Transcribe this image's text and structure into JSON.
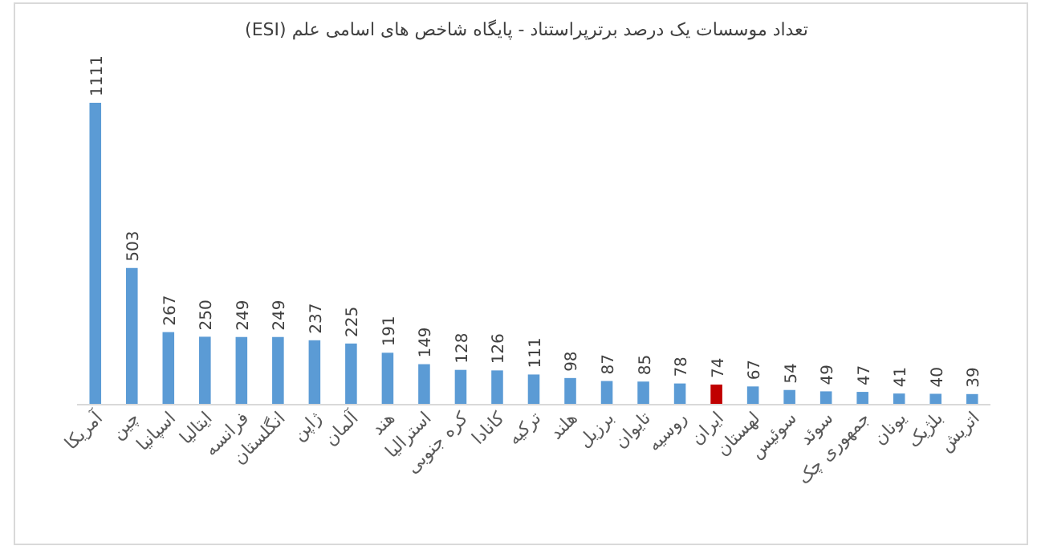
{
  "chart_data": {
    "type": "bar",
    "title": "تعداد موسسات یک درصد برترپراستناد - پایگاه شاخص های اسامی علم (ESI)",
    "categories": [
      "آمریکا",
      "چین",
      "اسپانیا",
      "ایتالیا",
      "فرانسه",
      "انگلستان",
      "ژاپن",
      "آلمان",
      "هند",
      "استرالیا",
      "کره جنوبی",
      "کانادا",
      "ترکیه",
      "هلند",
      "برزیل",
      "تایوان",
      "روسیه",
      "ایران",
      "لهستان",
      "سوئیس",
      "سوئد",
      "جمهوری چک",
      "یونان",
      "بلژیک",
      "اتریش"
    ],
    "values": [
      1111,
      503,
      267,
      250,
      249,
      249,
      237,
      225,
      191,
      149,
      128,
      126,
      111,
      98,
      87,
      85,
      78,
      74,
      67,
      54,
      49,
      47,
      41,
      40,
      39
    ],
    "colors": [
      "#5b9bd5",
      "#5b9bd5",
      "#5b9bd5",
      "#5b9bd5",
      "#5b9bd5",
      "#5b9bd5",
      "#5b9bd5",
      "#5b9bd5",
      "#5b9bd5",
      "#5b9bd5",
      "#5b9bd5",
      "#5b9bd5",
      "#5b9bd5",
      "#5b9bd5",
      "#5b9bd5",
      "#5b9bd5",
      "#5b9bd5",
      "#c00000",
      "#5b9bd5",
      "#5b9bd5",
      "#5b9bd5",
      "#5b9bd5",
      "#5b9bd5",
      "#5b9bd5",
      "#5b9bd5"
    ],
    "data_labels": true
  }
}
